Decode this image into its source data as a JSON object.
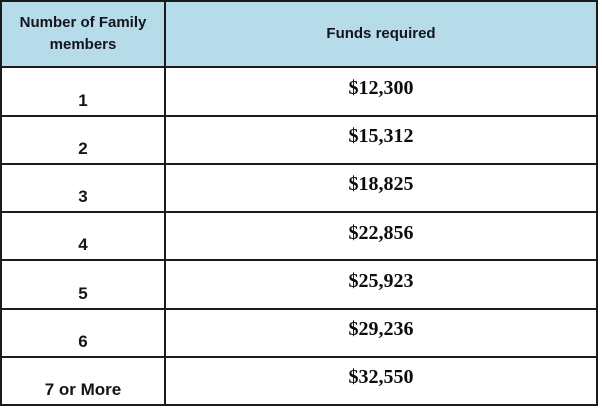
{
  "chart_data": {
    "type": "table",
    "title": "",
    "columns": [
      "Number of Family members",
      "Funds required"
    ],
    "rows": [
      [
        "1",
        "$12,300"
      ],
      [
        "2",
        "$15,312"
      ],
      [
        "3",
        "$18,825"
      ],
      [
        "4",
        "$22,856"
      ],
      [
        "5",
        "$25,923"
      ],
      [
        "6",
        "$29,236"
      ],
      [
        "7 or More",
        "$32,550"
      ]
    ]
  },
  "table": {
    "headers": {
      "members": "Number of Family members",
      "funds": "Funds required"
    },
    "rows": [
      {
        "members": "1",
        "funds": "$12,300"
      },
      {
        "members": "2",
        "funds": "$15,312"
      },
      {
        "members": "3",
        "funds": "$18,825"
      },
      {
        "members": "4",
        "funds": "$22,856"
      },
      {
        "members": "5",
        "funds": "$25,923"
      },
      {
        "members": "6",
        "funds": "$29,236"
      },
      {
        "members": "7 or More",
        "funds": "$32,550"
      }
    ]
  },
  "colors": {
    "header_bg": "#b6dcea",
    "border": "#1b1b1b",
    "header_text": "#14141e",
    "body_text": "#0d0d0d"
  }
}
